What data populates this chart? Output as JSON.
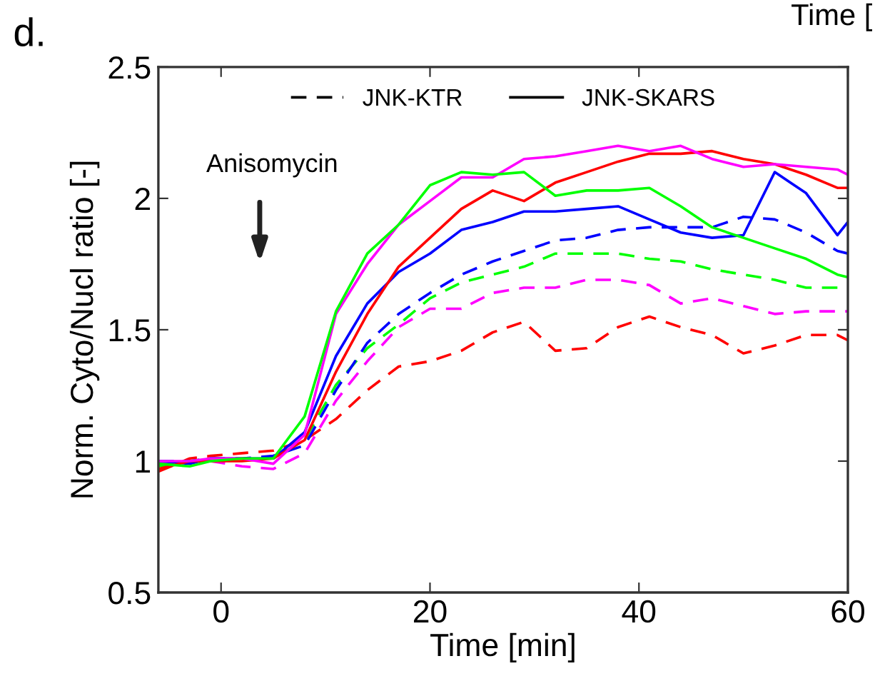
{
  "chart_data": {
    "type": "line",
    "xlabel": "Time [min]",
    "ylabel": "Norm. Cyto/Nucl ratio [-]",
    "x": [
      -6,
      -3,
      -1,
      2,
      5,
      8,
      11,
      14,
      17,
      20,
      23,
      26,
      29,
      32,
      35,
      38,
      41,
      44,
      47,
      50,
      53,
      56,
      59,
      60
    ],
    "xlim": [
      -6,
      60
    ],
    "xticks": [
      0,
      20,
      40,
      60
    ],
    "ylim": [
      0.5,
      2.5
    ],
    "yticks": [
      0.5,
      1,
      1.5,
      2,
      2.5
    ],
    "grid": false,
    "legend": "top",
    "series": [
      {
        "name": "JNK-KTR",
        "line_style": "dashed",
        "color": "#000000",
        "values": [
          null,
          null,
          null,
          null,
          null,
          null,
          null,
          null,
          null,
          null,
          null,
          null,
          null,
          null,
          null,
          null,
          null,
          null,
          null,
          null,
          null,
          null,
          null,
          null
        ]
      },
      {
        "name": "JNK-SKARS",
        "line_style": "solid",
        "color": "#000000",
        "values": [
          null,
          null,
          null,
          null,
          null,
          null,
          null,
          null,
          null,
          null,
          null,
          null,
          null,
          null,
          null,
          null,
          null,
          null,
          null,
          null,
          null,
          null,
          null,
          null
        ]
      },
      {
        "line_style": "dashed",
        "color": "#ff0000",
        "values": [
          0.96,
          1.01,
          1.02,
          1.03,
          1.04,
          1.08,
          1.16,
          1.27,
          1.36,
          1.38,
          1.42,
          1.49,
          1.53,
          1.42,
          1.43,
          1.51,
          1.55,
          1.51,
          1.48,
          1.41,
          1.44,
          1.48,
          1.48,
          1.46
        ]
      },
      {
        "line_style": "dashed",
        "color": "#ff00ff",
        "values": [
          0.99,
          1.0,
          1.0,
          0.98,
          0.97,
          1.03,
          1.23,
          1.38,
          1.51,
          1.58,
          1.58,
          1.64,
          1.66,
          1.66,
          1.69,
          1.69,
          1.67,
          1.6,
          1.62,
          1.59,
          1.56,
          1.57,
          1.57,
          1.57
        ]
      },
      {
        "line_style": "dashed",
        "color": "#00ff00",
        "values": [
          0.98,
          1.0,
          1.01,
          1.01,
          1.01,
          1.08,
          1.29,
          1.43,
          1.52,
          1.62,
          1.68,
          1.71,
          1.74,
          1.79,
          1.79,
          1.79,
          1.77,
          1.76,
          1.73,
          1.71,
          1.69,
          1.66,
          1.66,
          1.66
        ]
      },
      {
        "line_style": "dashed",
        "color": "#0000ff",
        "values": [
          1.0,
          1.0,
          1.01,
          1.01,
          1.02,
          1.06,
          1.27,
          1.45,
          1.56,
          1.64,
          1.71,
          1.76,
          1.8,
          1.84,
          1.85,
          1.88,
          1.89,
          1.89,
          1.89,
          1.93,
          1.92,
          1.87,
          1.8,
          1.79
        ]
      },
      {
        "line_style": "solid",
        "color": "#0000ff",
        "values": [
          1.0,
          0.99,
          1.01,
          1.01,
          1.01,
          1.11,
          1.4,
          1.6,
          1.72,
          1.79,
          1.88,
          1.91,
          1.95,
          1.95,
          1.96,
          1.97,
          1.92,
          1.87,
          1.85,
          1.86,
          2.1,
          2.02,
          1.86,
          1.91
        ]
      },
      {
        "line_style": "solid",
        "color": "#ff0000",
        "values": [
          0.97,
          1.0,
          1.0,
          1.0,
          1.01,
          1.08,
          1.34,
          1.56,
          1.74,
          1.85,
          1.96,
          2.03,
          1.99,
          2.06,
          2.1,
          2.14,
          2.17,
          2.17,
          2.18,
          2.15,
          2.13,
          2.09,
          2.04,
          2.04
        ]
      },
      {
        "line_style": "solid",
        "color": "#ff00ff",
        "values": [
          1.0,
          1.0,
          1.01,
          1.01,
          0.99,
          1.1,
          1.56,
          1.75,
          1.9,
          1.99,
          2.08,
          2.08,
          2.15,
          2.16,
          2.18,
          2.2,
          2.18,
          2.2,
          2.15,
          2.12,
          2.13,
          2.12,
          2.11,
          2.09
        ]
      },
      {
        "line_style": "solid",
        "color": "#00ff00",
        "values": [
          0.99,
          0.98,
          1.0,
          1.01,
          1.01,
          1.17,
          1.57,
          1.79,
          1.9,
          2.05,
          2.1,
          2.09,
          2.1,
          2.01,
          2.03,
          2.03,
          2.04,
          1.97,
          1.89,
          1.85,
          1.81,
          1.77,
          1.71,
          1.7
        ]
      }
    ],
    "annotations": [
      "Anisomycin",
      "d.",
      "Time ["
    ]
  }
}
